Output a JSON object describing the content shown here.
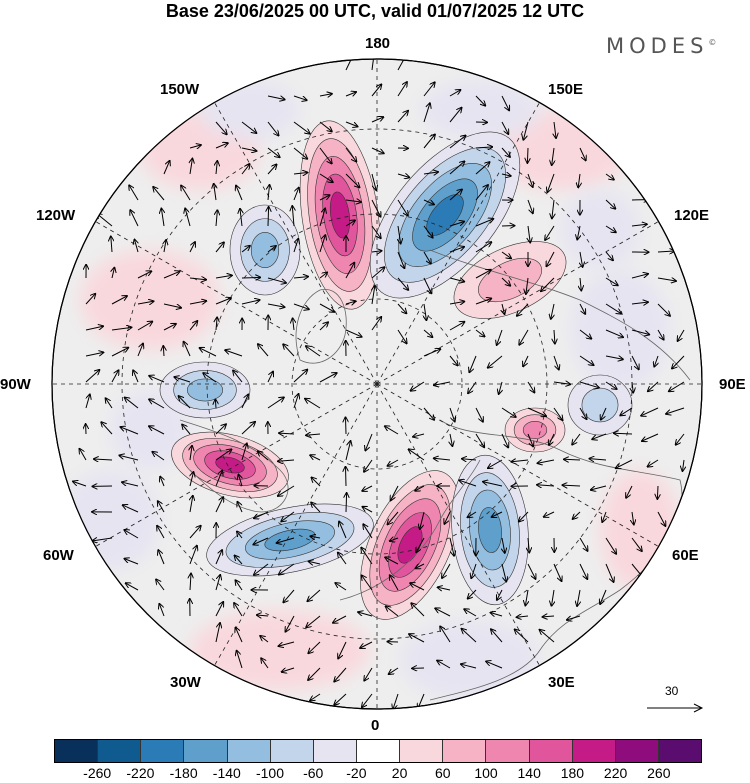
{
  "header": {
    "title": "Base 23/06/2025 00 UTC, valid 01/07/2025 12 UTC",
    "brand": "MODES",
    "brand_mark": "©"
  },
  "map": {
    "projection": "north-polar-stereographic",
    "longitude_labels": {
      "top": "180",
      "top_left": "150W",
      "top_right": "150E",
      "upper_left": "120W",
      "upper_right": "120E",
      "left": "90W",
      "right": "90E",
      "lower_left": "60W",
      "lower_right": "60E",
      "bottom_left": "30W",
      "bottom_right": "30E",
      "bottom": "0"
    },
    "reference_vector": {
      "label": "30"
    },
    "anomaly_centers": [
      {
        "name": "positive-anomaly-near-180",
        "sign": "positive",
        "level": 220
      },
      {
        "name": "negative-anomaly-near-150e",
        "sign": "negative",
        "level": -220
      },
      {
        "name": "negative-anomaly-near-120w",
        "sign": "negative",
        "level": -140
      },
      {
        "name": "positive-anomaly-near-120e",
        "sign": "positive",
        "level": 100
      },
      {
        "name": "negative-anomaly-near-90w",
        "sign": "negative",
        "level": -140
      },
      {
        "name": "positive-anomaly-near-70w",
        "sign": "positive",
        "level": 220
      },
      {
        "name": "negative-anomaly-near-45w",
        "sign": "negative",
        "level": -180
      },
      {
        "name": "positive-anomaly-near-10e",
        "sign": "positive",
        "level": 220
      },
      {
        "name": "negative-anomaly-near-45e",
        "sign": "negative",
        "level": -180
      },
      {
        "name": "positive-anomaly-near-75e",
        "sign": "positive",
        "level": 140
      },
      {
        "name": "negative-anomaly-near-90e",
        "sign": "negative",
        "level": -100
      }
    ]
  },
  "colorbar": {
    "colors": [
      "#08305a",
      "#0f5a8f",
      "#2b7bb6",
      "#5e9fcc",
      "#93bedf",
      "#c3d5ea",
      "#e6e4f1",
      "#ffffff",
      "#f9d8dd",
      "#f5b3c5",
      "#ef86b0",
      "#e0559c",
      "#c51b86",
      "#8e0c7c",
      "#5a0d6e"
    ],
    "ticks": [
      "-260",
      "-220",
      "-180",
      "-140",
      "-100",
      "-60",
      "-20",
      "20",
      "60",
      "100",
      "140",
      "180",
      "220",
      "260"
    ]
  }
}
